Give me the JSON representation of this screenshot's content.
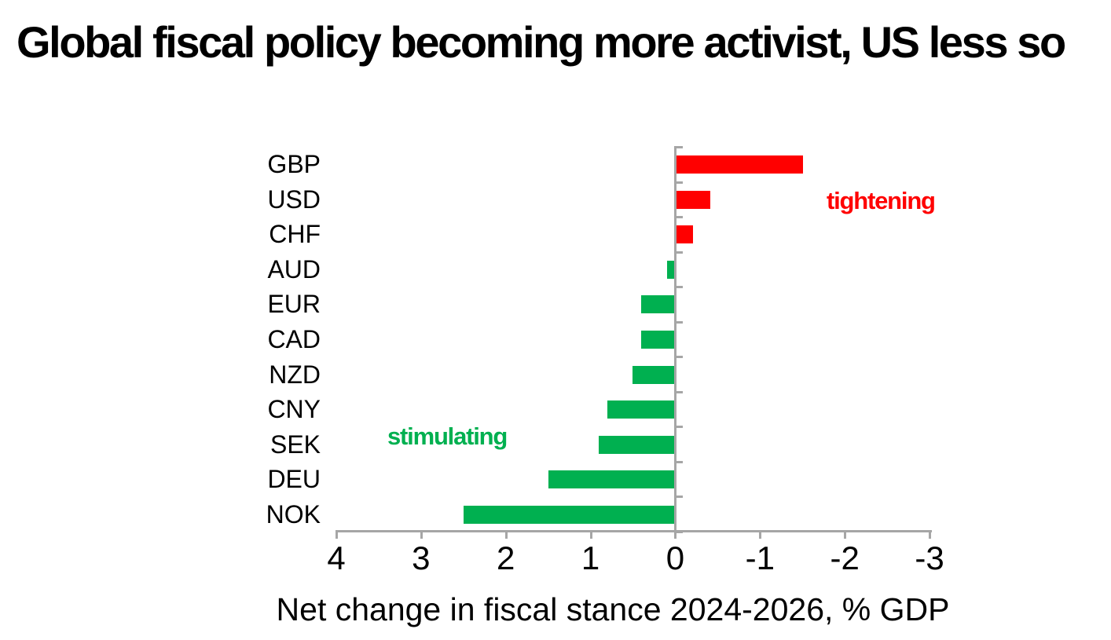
{
  "title": "Global fiscal policy becoming more activist, US less so",
  "chart_data": {
    "type": "bar",
    "orientation": "horizontal",
    "categories": [
      "GBP",
      "USD",
      "CHF",
      "AUD",
      "EUR",
      "CAD",
      "NZD",
      "CNY",
      "SEK",
      "DEU",
      "NOK"
    ],
    "values": [
      -1.5,
      -0.4,
      -0.2,
      0.1,
      0.4,
      0.4,
      0.5,
      0.8,
      0.9,
      1.5,
      2.5
    ],
    "xlabel": "Net change in fiscal stance 2024-2026, % GDP",
    "x_ticks": [
      4,
      3,
      2,
      1,
      0,
      -1,
      -2,
      -3
    ],
    "xlim": [
      4,
      -3
    ],
    "x_axis_reversed": true,
    "grid": false,
    "legend": false,
    "annotations": [
      {
        "text": "tightening",
        "color": "#ff0000",
        "meaning": "negative values side"
      },
      {
        "text": "stimulating",
        "color": "#00b050",
        "meaning": "positive values side"
      }
    ],
    "colors": {
      "positive_bar": "#00b050",
      "negative_bar": "#ff0000",
      "axis": "#a6a6a6",
      "text": "#000000"
    }
  }
}
